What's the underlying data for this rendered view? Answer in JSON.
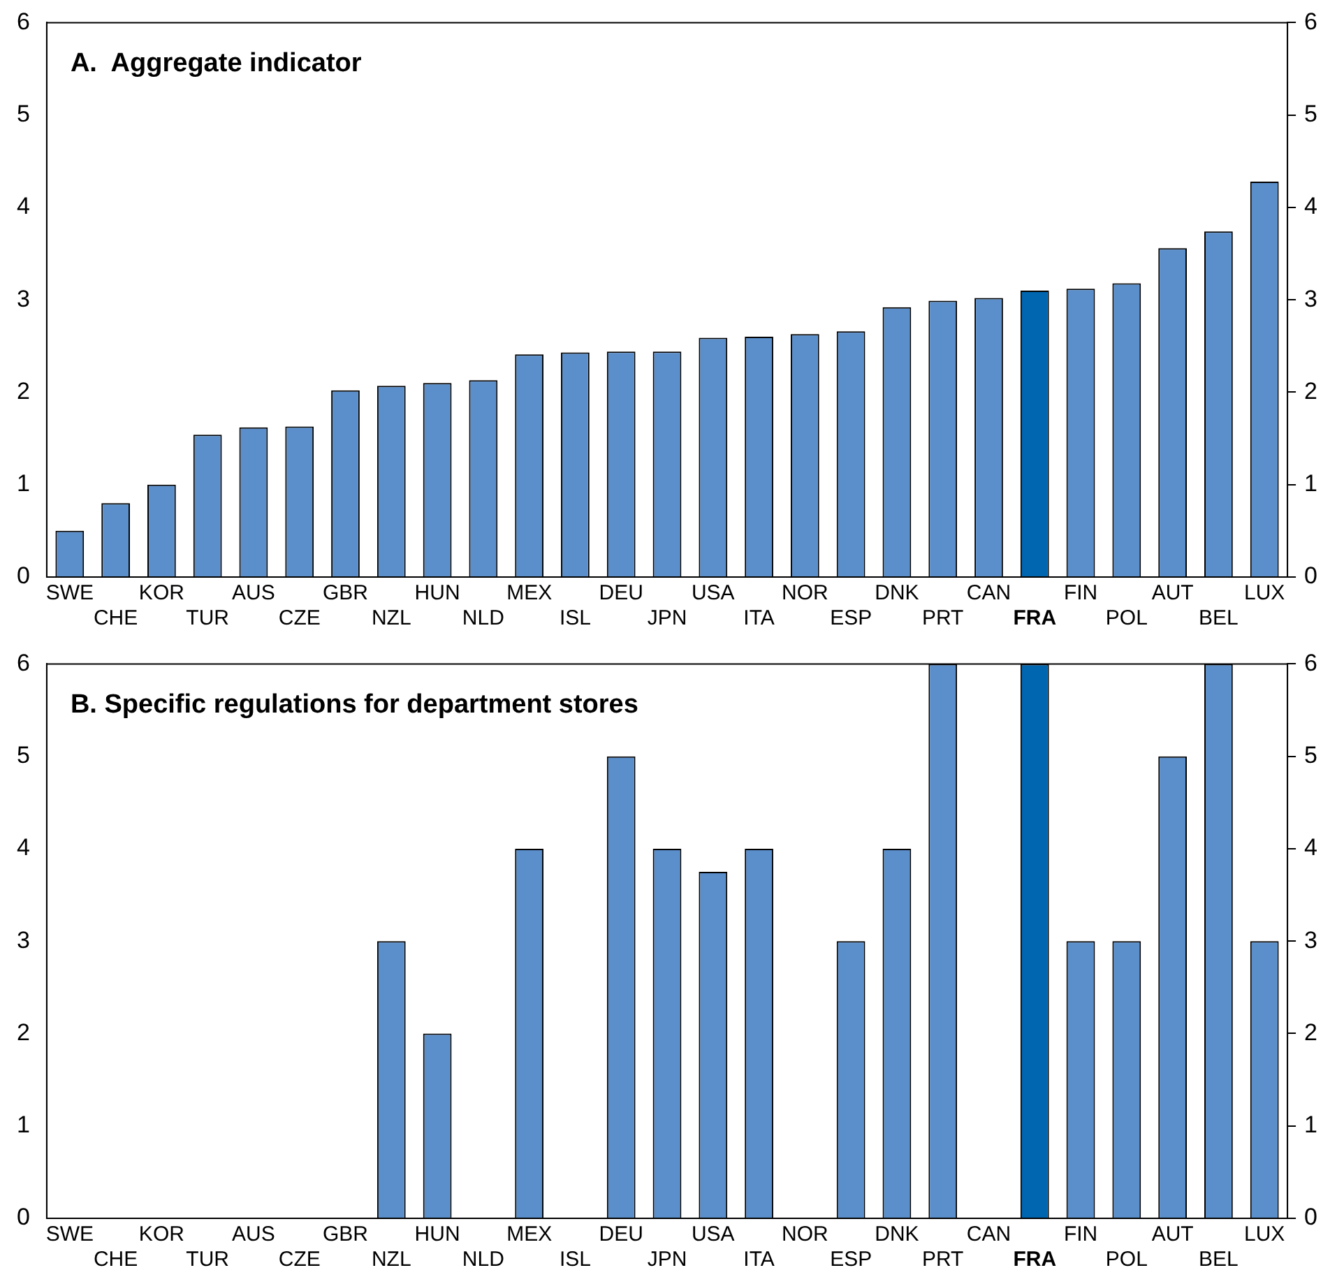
{
  "chart_data": [
    {
      "type": "bar",
      "title": "A.  Aggregate indicator",
      "categories": [
        "SWE",
        "CHE",
        "KOR",
        "TUR",
        "AUS",
        "CZE",
        "GBR",
        "NZL",
        "HUN",
        "NLD",
        "MEX",
        "ISL",
        "DEU",
        "JPN",
        "USA",
        "ITA",
        "NOR",
        "ESP",
        "DNK",
        "PRT",
        "CAN",
        "FRA",
        "FIN",
        "POL",
        "AUT",
        "BEL",
        "LUX"
      ],
      "values": [
        0.5,
        0.8,
        1.0,
        1.54,
        1.62,
        1.63,
        2.02,
        2.07,
        2.1,
        2.13,
        2.41,
        2.43,
        2.44,
        2.44,
        2.59,
        2.6,
        2.63,
        2.66,
        2.92,
        2.99,
        3.02,
        3.1,
        3.12,
        3.18,
        3.56,
        3.74,
        4.28
      ],
      "colors": [
        "#5b8fcb",
        "#5b8fcb",
        "#5b8fcb",
        "#5b8fcb",
        "#5b8fcb",
        "#5b8fcb",
        "#5b8fcb",
        "#5b8fcb",
        "#5b8fcb",
        "#5b8fcb",
        "#5b8fcb",
        "#5b8fcb",
        "#5b8fcb",
        "#5b8fcb",
        "#5b8fcb",
        "#5b8fcb",
        "#5b8fcb",
        "#5b8fcb",
        "#5b8fcb",
        "#5b8fcb",
        "#5b8fcb",
        "#0066b0",
        "#5b8fcb",
        "#5b8fcb",
        "#5b8fcb",
        "#5b8fcb",
        "#5b8fcb"
      ],
      "ylim": [
        0,
        6
      ],
      "yticks": [
        0,
        1,
        2,
        3,
        4,
        5,
        6
      ],
      "y2lim": [
        0,
        6
      ],
      "y2ticks": [
        0,
        1,
        2,
        3,
        4,
        5,
        6
      ],
      "grid": false,
      "legend": false
    },
    {
      "type": "bar",
      "title": "B. Specific regulations for department stores",
      "categories": [
        "SWE",
        "CHE",
        "KOR",
        "TUR",
        "AUS",
        "CZE",
        "GBR",
        "NZL",
        "HUN",
        "NLD",
        "MEX",
        "ISL",
        "DEU",
        "JPN",
        "USA",
        "ITA",
        "NOR",
        "ESP",
        "DNK",
        "PRT",
        "CAN",
        "FRA",
        "FIN",
        "POL",
        "AUT",
        "BEL",
        "LUX"
      ],
      "values": [
        0,
        0,
        0,
        0,
        0,
        0,
        0,
        3,
        2,
        0,
        4,
        0,
        5,
        4,
        3.75,
        4,
        0,
        3,
        4,
        6,
        0,
        6,
        3,
        3,
        5,
        6,
        3
      ],
      "colors": [
        "#5b8fcb",
        "#5b8fcb",
        "#5b8fcb",
        "#5b8fcb",
        "#5b8fcb",
        "#5b8fcb",
        "#5b8fcb",
        "#5b8fcb",
        "#5b8fcb",
        "#5b8fcb",
        "#5b8fcb",
        "#5b8fcb",
        "#5b8fcb",
        "#5b8fcb",
        "#5b8fcb",
        "#5b8fcb",
        "#5b8fcb",
        "#5b8fcb",
        "#5b8fcb",
        "#5b8fcb",
        "#5b8fcb",
        "#0066b0",
        "#5b8fcb",
        "#5b8fcb",
        "#5b8fcb",
        "#5b8fcb",
        "#5b8fcb"
      ],
      "ylim": [
        0,
        6
      ],
      "yticks": [
        0,
        1,
        2,
        3,
        4,
        5,
        6
      ],
      "y2lim": [
        0,
        6
      ],
      "y2ticks": [
        0,
        1,
        2,
        3,
        4,
        5,
        6
      ],
      "grid": false,
      "legend": false
    }
  ]
}
